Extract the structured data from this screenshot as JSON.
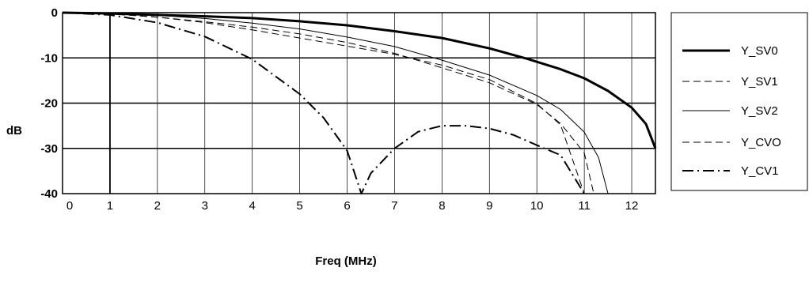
{
  "chart_data": {
    "type": "line",
    "title": "",
    "xlabel": "Freq (MHz)",
    "ylabel": "dB",
    "xlim": [
      0,
      12.5
    ],
    "ylim": [
      -40,
      0
    ],
    "xticks": [
      "0",
      "1",
      "2",
      "3",
      "4",
      "5",
      "6",
      "7",
      "8",
      "9",
      "10",
      "11",
      "12"
    ],
    "yticks": [
      "0",
      "-10",
      "-20",
      "-30",
      "-40"
    ],
    "grid": true,
    "legend_position": "right",
    "series": [
      {
        "name": "Y_SV0",
        "style": "thick-solid",
        "x": [
          0,
          1,
          2,
          3,
          4,
          5,
          6,
          7,
          8,
          9,
          9.8,
          10.5,
          11,
          11.5,
          12,
          12.3,
          12.5
        ],
        "y": [
          0,
          -0.2,
          -0.5,
          -0.8,
          -1.2,
          -1.9,
          -2.8,
          -4.1,
          -5.6,
          -7.9,
          -10.2,
          -12.5,
          -14.5,
          -17.3,
          -21,
          -24.6,
          -30
        ]
      },
      {
        "name": "Y_SV1",
        "style": "dashed",
        "x": [
          0,
          1,
          2,
          3,
          4,
          5,
          6,
          7,
          8,
          9,
          10,
          10.5,
          11,
          11.2
        ],
        "y": [
          0,
          -0.3,
          -1.0,
          -2.0,
          -3.2,
          -4.7,
          -6.6,
          -9.0,
          -12.2,
          -15.5,
          -20.3,
          -24.5,
          -31,
          -40
        ]
      },
      {
        "name": "Y_SV2",
        "style": "thin-solid",
        "x": [
          0,
          1,
          2,
          3,
          4,
          5,
          6,
          7,
          8,
          9,
          10,
          10.5,
          11,
          11.3,
          11.5
        ],
        "y": [
          0,
          -0.2,
          -0.6,
          -1.3,
          -2.3,
          -3.6,
          -5.4,
          -7.5,
          -10.5,
          -13.8,
          -18.3,
          -21.4,
          -26.4,
          -32,
          -40
        ]
      },
      {
        "name": "Y_CVO",
        "style": "dashed",
        "x": [
          0,
          1,
          1.5,
          2,
          3,
          4,
          5,
          6,
          7,
          8,
          9,
          10,
          10.5,
          11
        ],
        "y": [
          0,
          -0.3,
          -0.6,
          -1.0,
          -2.2,
          -3.8,
          -5.6,
          -7.4,
          -9.2,
          -11.6,
          -14.8,
          -20.1,
          -24.8,
          -40
        ]
      },
      {
        "name": "Y_CV1",
        "style": "dash-dot",
        "x": [
          0,
          1,
          2,
          3,
          4,
          5,
          5.5,
          6,
          6.3,
          6.5,
          7,
          7.5,
          8,
          8.5,
          9,
          9.5,
          10,
          10.5,
          11
        ],
        "y": [
          0,
          -0.5,
          -2.2,
          -5.3,
          -10.3,
          -18,
          -23.2,
          -30.5,
          -40,
          -35.5,
          -30,
          -26.3,
          -25,
          -25,
          -25.6,
          -27,
          -29.3,
          -31.5,
          -40
        ]
      }
    ]
  }
}
